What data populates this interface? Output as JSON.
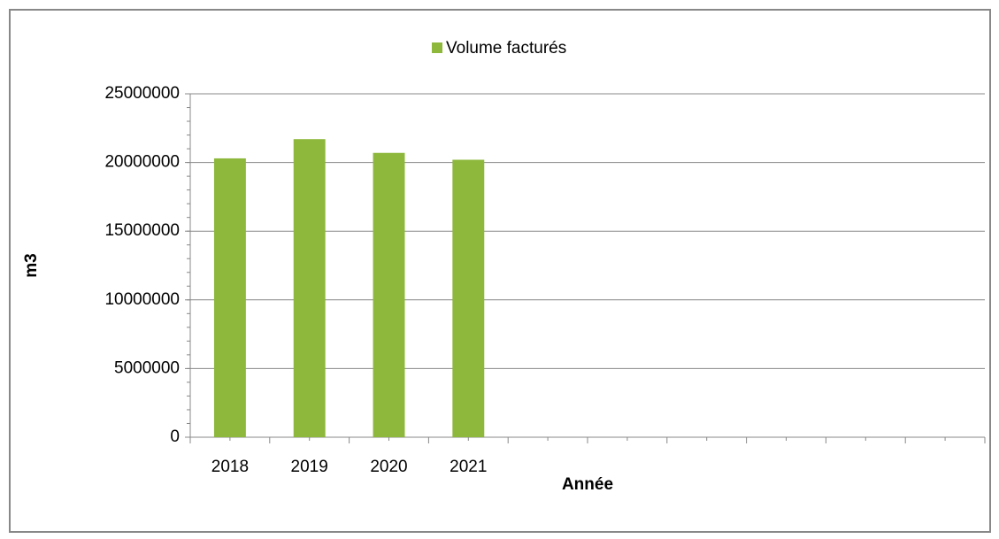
{
  "chart_data": {
    "type": "bar",
    "legend": "top",
    "x_label": "Année",
    "y_label": "m3",
    "categories": [
      "2018",
      "2019",
      "2020",
      "2021",
      null,
      null,
      null,
      null,
      null,
      null
    ],
    "series": [
      {
        "name": "Volume facturés",
        "color": "#8db83b",
        "values": [
          20300000,
          21700000,
          20700000,
          20200000,
          null,
          null,
          null,
          null,
          null,
          null
        ]
      }
    ],
    "ylim": [
      0,
      25000000
    ],
    "yticks": [
      0,
      5000000,
      10000000,
      15000000,
      20000000,
      25000000
    ],
    "grid": true
  }
}
